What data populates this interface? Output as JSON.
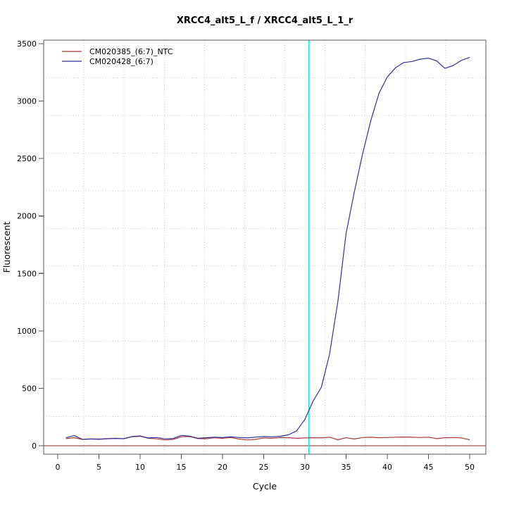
{
  "window": {
    "background_color": "#ffffff",
    "text_color": "#000000",
    "box_color": "#555555"
  },
  "chart_data": {
    "type": "line",
    "title": "XRCC4_alt5_L_f / XRCC4_alt5_L_1_r",
    "xlabel": "Cycle",
    "ylabel": "Fluorescent",
    "x_ticks": [
      0,
      5,
      10,
      15,
      20,
      25,
      30,
      35,
      40,
      45,
      50
    ],
    "y_ticks": [
      0,
      500,
      1000,
      1500,
      2000,
      2500,
      3000,
      3500
    ],
    "xlim": [
      -1.7,
      52
    ],
    "ylim": [
      -75,
      3530
    ],
    "x_start": 1,
    "x_step": 1,
    "series": [
      {
        "name": "CM020385_(6:7)_NTC",
        "color": "#A73B3B",
        "values": [
          62,
          70,
          55,
          60,
          58,
          62,
          65,
          60,
          78,
          82,
          65,
          60,
          50,
          55,
          78,
          80,
          62,
          60,
          70,
          65,
          72,
          58,
          50,
          55,
          68,
          65,
          72,
          70,
          65,
          68,
          70,
          68,
          75,
          52,
          70,
          58,
          72,
          74,
          70,
          72,
          75,
          76,
          74,
          72,
          75,
          62,
          70,
          72,
          68,
          52
        ]
      },
      {
        "name": "CM020428_(6:7)",
        "color": "#32329E",
        "values": [
          70,
          88,
          55,
          58,
          56,
          60,
          64,
          62,
          80,
          85,
          68,
          72,
          60,
          63,
          90,
          84,
          65,
          70,
          75,
          72,
          78,
          72,
          68,
          75,
          80,
          78,
          82,
          95,
          130,
          230,
          390,
          510,
          800,
          1255,
          1850,
          2210,
          2540,
          2830,
          3070,
          3210,
          3290,
          3336,
          3345,
          3365,
          3374,
          3350,
          3285,
          3310,
          3355,
          3380
        ]
      }
    ],
    "threshold_line": {
      "cycle": 30.5,
      "color": "#00EEEE"
    },
    "baseline_line": {
      "value": 0,
      "color": "#8B2323"
    },
    "grid": {
      "nx": 11,
      "ny": 11,
      "color": "#C4C4C4",
      "style": "dotted"
    },
    "legend_position": "top-left",
    "legend_entries": [
      "CM020385_(6:7)_NTC",
      "CM020428_(6:7)"
    ]
  }
}
